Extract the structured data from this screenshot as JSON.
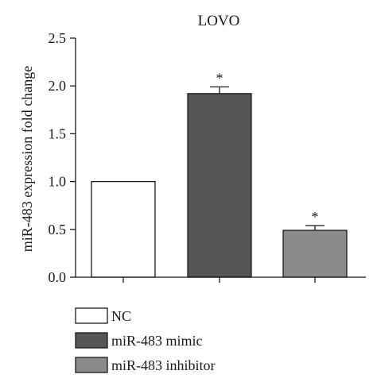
{
  "chart_data": {
    "type": "bar",
    "title": "LOVO",
    "ylabel": "miR-483 expression fold change",
    "xlabel": "",
    "ylim": [
      0,
      2.5
    ],
    "yticks": [
      0.0,
      0.5,
      1.0,
      1.5,
      2.0,
      2.5
    ],
    "ytick_labels": [
      "0.0",
      "0.5",
      "1.0",
      "1.5",
      "2.0",
      "2.5"
    ],
    "grid": false,
    "legend_position": "bottom-left",
    "categories": [
      "NC",
      "miR-483 mimic",
      "miR-483 inhibitor"
    ],
    "values": [
      1.0,
      1.92,
      0.49
    ],
    "errors": [
      0.0,
      0.07,
      0.05
    ],
    "significance": [
      "",
      "*",
      "*"
    ],
    "colors": [
      "#ffffff",
      "#555555",
      "#8a8a8a"
    ],
    "legend": [
      {
        "label": "NC",
        "color": "#ffffff"
      },
      {
        "label": "miR-483 mimic",
        "color": "#555555"
      },
      {
        "label": "miR-483 inhibitor",
        "color": "#8a8a8a"
      }
    ]
  }
}
